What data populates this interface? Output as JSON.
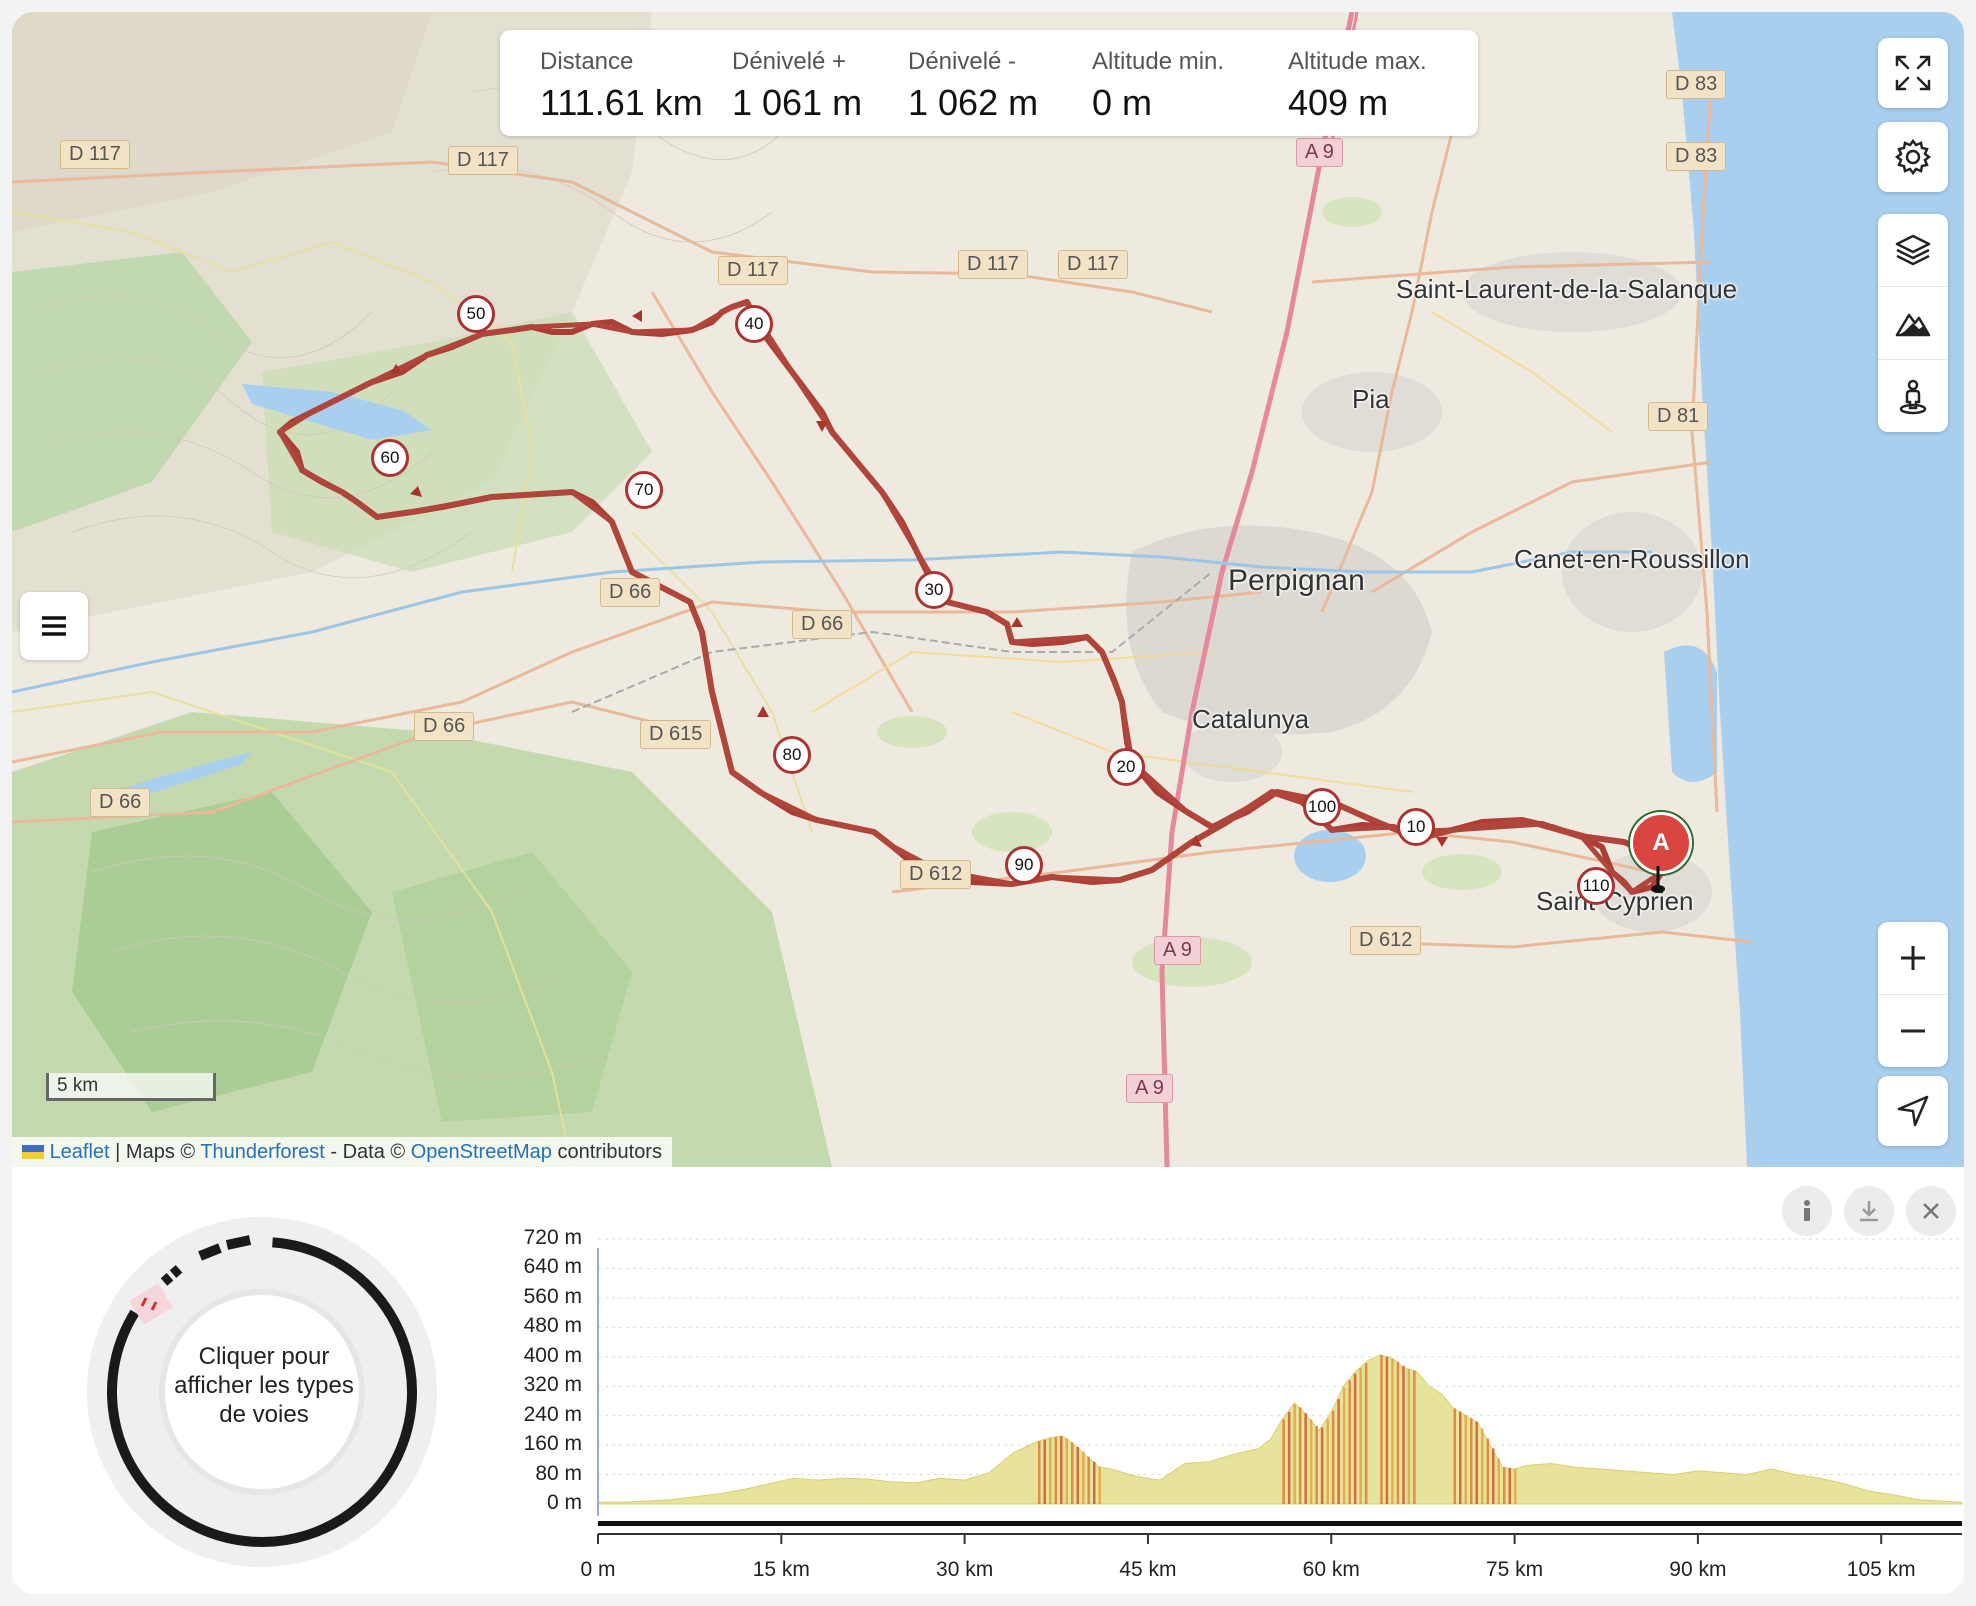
{
  "stats": [
    {
      "label": "Distance",
      "value": "111.61 km"
    },
    {
      "label": "Dénivelé +",
      "value": "1 061 m"
    },
    {
      "label": "Dénivelé -",
      "value": "1 062 m"
    },
    {
      "label": "Altitude min.",
      "value": "0 m"
    },
    {
      "label": "Altitude max.",
      "value": "409 m"
    }
  ],
  "map": {
    "places": [
      "Perpignan",
      "Saint-Laurent-de-la-Salanque",
      "Pia",
      "Canet-en-Roussillon",
      "Catalunya",
      "Saint-Cyprien"
    ],
    "roads": [
      "D 117",
      "D 117",
      "D 117",
      "D 117",
      "D 117",
      "D 83",
      "D 83",
      "D 81",
      "A 9",
      "A 9",
      "A 9",
      "D 66",
      "D 66",
      "D 66",
      "D 66",
      "D 615",
      "D 612",
      "D 612"
    ],
    "km_markers": [
      "10",
      "20",
      "30",
      "40",
      "50",
      "60",
      "70",
      "80",
      "90",
      "100",
      "110"
    ],
    "start_marker": "A",
    "scale": "5 km",
    "attribution": {
      "leaflet": "Leaflet",
      "sep": " | Maps © ",
      "provider": "Thunderforest",
      "data": " - Data © ",
      "osm": "OpenStreetMap",
      "suffix": " contributors"
    },
    "controls": [
      "fullscreen-icon",
      "settings-icon",
      "layers-icon",
      "elevation-icon",
      "street-view-icon",
      "zoom-in",
      "zoom-out",
      "locate-icon"
    ]
  },
  "profile": {
    "donut_label": "Cliquer pour afficher les types de voies",
    "buttons": [
      "info-icon",
      "download-icon",
      "close-icon"
    ]
  },
  "chart_data": {
    "type": "area",
    "title": "",
    "xlabel": "",
    "ylabel": "",
    "x_ticks": [
      "0 m",
      "15 km",
      "30 km",
      "45 km",
      "60 km",
      "75 km",
      "90 km",
      "105 km"
    ],
    "y_ticks": [
      "720 m",
      "640 m",
      "560 m",
      "480 m",
      "400 m",
      "320 m",
      "240 m",
      "160 m",
      "80 m",
      "0 m"
    ],
    "xlim_km": [
      0,
      111.61
    ],
    "ylim_m": [
      0,
      720
    ],
    "x_km": [
      0,
      2,
      4,
      6,
      8,
      10,
      12,
      14,
      16,
      18,
      20,
      22,
      24,
      26,
      28,
      30,
      32,
      34,
      35,
      36,
      37,
      38,
      39,
      40,
      41,
      42,
      44,
      46,
      48,
      50,
      52,
      54,
      55,
      56,
      57,
      58,
      59,
      60,
      61,
      62,
      63,
      64,
      65,
      66,
      67,
      68,
      69,
      70,
      72,
      74,
      75,
      76,
      78,
      80,
      82,
      84,
      86,
      88,
      90,
      92,
      94,
      96,
      98,
      100,
      102,
      104,
      106,
      108,
      110,
      111.6
    ],
    "elevation_m": [
      5,
      5,
      8,
      12,
      20,
      28,
      40,
      55,
      70,
      65,
      70,
      68,
      60,
      58,
      70,
      65,
      85,
      140,
      155,
      170,
      180,
      185,
      160,
      130,
      100,
      95,
      75,
      65,
      110,
      115,
      135,
      150,
      175,
      230,
      275,
      240,
      200,
      250,
      320,
      360,
      390,
      405,
      395,
      370,
      360,
      320,
      300,
      260,
      220,
      100,
      95,
      105,
      110,
      100,
      95,
      90,
      85,
      80,
      90,
      85,
      80,
      95,
      80,
      70,
      55,
      35,
      25,
      12,
      8,
      5
    ],
    "steep_segments_km": [
      [
        56,
        63
      ],
      [
        64,
        67
      ],
      [
        70,
        75
      ],
      [
        36,
        41
      ]
    ]
  }
}
